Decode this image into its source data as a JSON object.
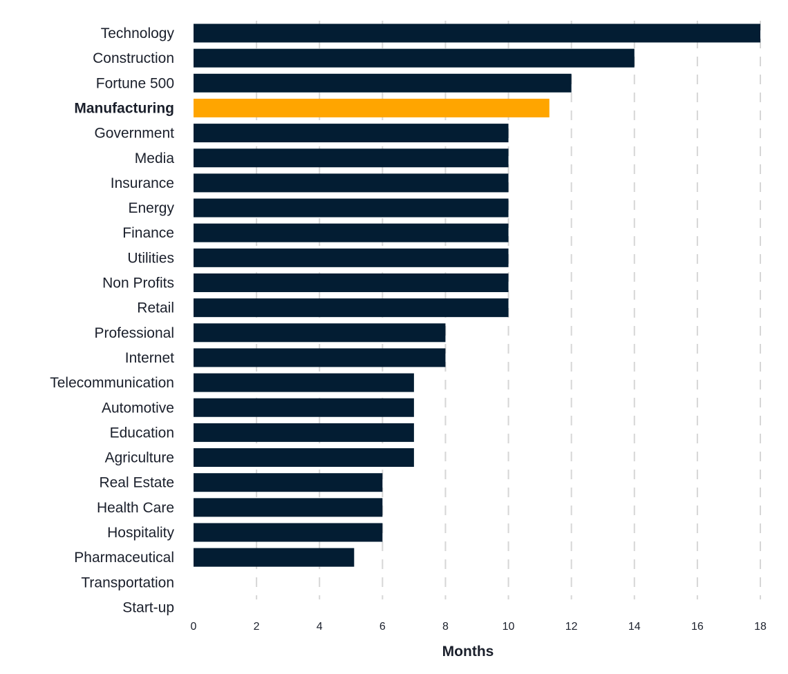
{
  "chart_data": {
    "type": "bar",
    "orientation": "horizontal",
    "title": "",
    "xlabel": "Months",
    "ylabel": "",
    "xlim": [
      0,
      18
    ],
    "xticks": [
      0,
      2,
      4,
      6,
      8,
      10,
      12,
      14,
      16,
      18
    ],
    "grid": "vertical dashed",
    "categories": [
      "Technology",
      "Construction",
      "Fortune 500",
      "Manufacturing",
      "Government",
      "Media",
      "Insurance",
      "Energy",
      "Finance",
      "Utilities",
      "Non Profits",
      "Retail",
      "Professional",
      "Internet",
      "Telecommunication",
      "Automotive",
      "Education",
      "Agriculture",
      "Real Estate",
      "Health Care",
      "Hospitality",
      "Pharmaceutical",
      "Transportation",
      "Start-up"
    ],
    "values": [
      18,
      14,
      12,
      11.3,
      10,
      10,
      10,
      10,
      10,
      10,
      10,
      10,
      8,
      8,
      7,
      7,
      7,
      7,
      6,
      6,
      6,
      5.1,
      0,
      0
    ],
    "highlight": "Manufacturing",
    "colors": {
      "bar": "#031d33",
      "highlight": "#ffa500",
      "grid": "#d6d6d6",
      "text": "#1a1f2b"
    }
  }
}
